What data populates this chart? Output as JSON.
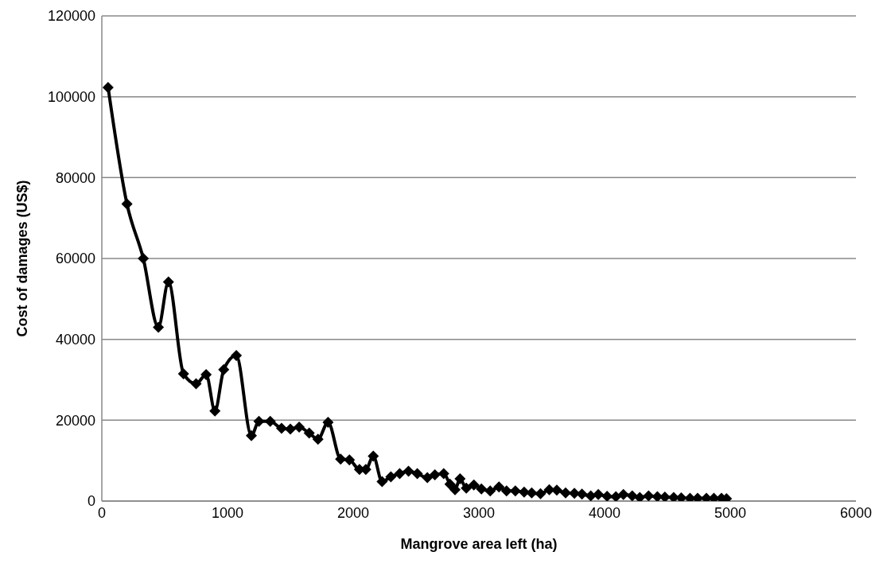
{
  "chart_data": {
    "type": "line",
    "xlabel": "Mangrove area left (ha)",
    "ylabel": "Cost of damages (US$)",
    "xlim": [
      0,
      6000
    ],
    "xticks": [
      0,
      1000,
      2000,
      3000,
      4000,
      5000,
      6000
    ],
    "ylim": [
      0,
      120000
    ],
    "yticks": [
      0,
      20000,
      40000,
      60000,
      80000,
      100000,
      120000
    ],
    "grid": "y",
    "marker": "diamond",
    "line_style": "solid",
    "legend": false,
    "series": [
      {
        "color": "#000000",
        "x": [
          50,
          200,
          330,
          450,
          530,
          650,
          750,
          830,
          900,
          970,
          1070,
          1190,
          1250,
          1340,
          1430,
          1500,
          1570,
          1650,
          1720,
          1800,
          1900,
          1970,
          2050,
          2100,
          2160,
          2230,
          2300,
          2370,
          2440,
          2510,
          2590,
          2650,
          2720,
          2770,
          2810,
          2850,
          2900,
          2960,
          3020,
          3090,
          3160,
          3220,
          3290,
          3360,
          3420,
          3490,
          3560,
          3620,
          3690,
          3760,
          3820,
          3890,
          3950,
          4020,
          4090,
          4150,
          4220,
          4280,
          4350,
          4420,
          4480,
          4550,
          4610,
          4680,
          4740,
          4810,
          4870,
          4930,
          4970
        ],
        "values": [
          102300,
          73500,
          60000,
          43000,
          54200,
          31500,
          29000,
          31300,
          22300,
          32500,
          36000,
          16200,
          19700,
          19700,
          18000,
          17800,
          18300,
          16800,
          15300,
          19500,
          10400,
          10200,
          7800,
          7800,
          11100,
          4800,
          6000,
          6800,
          7400,
          6800,
          5800,
          6500,
          6800,
          4200,
          2800,
          5500,
          3200,
          4000,
          3000,
          2500,
          3500,
          2500,
          2500,
          2200,
          2000,
          1800,
          2800,
          2700,
          2000,
          1900,
          1700,
          1300,
          1600,
          1200,
          1100,
          1600,
          1300,
          900,
          1300,
          1100,
          1000,
          900,
          800,
          700,
          700,
          700,
          700,
          700,
          600
        ]
      }
    ]
  }
}
